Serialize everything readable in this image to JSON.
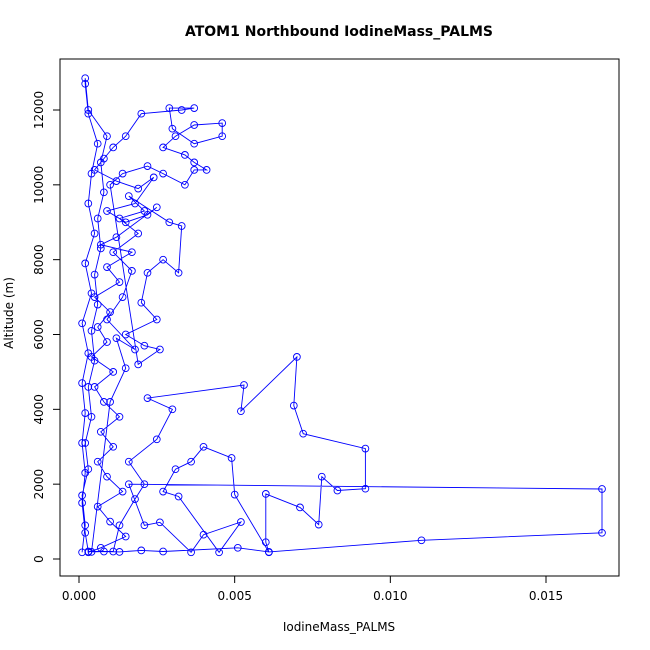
{
  "chart_data": {
    "type": "line",
    "title": "ATOM1 Northbound IodineMass_PALMS",
    "xlabel": "IodineMass_PALMS",
    "ylabel": "Altitude (m)",
    "xlim": [
      0,
      0.0168
    ],
    "ylim": [
      150,
      12850
    ],
    "x_ticks": [
      0.0,
      0.005,
      0.01,
      0.015
    ],
    "x_tick_labels": [
      "0.000",
      "0.005",
      "0.010",
      "0.015"
    ],
    "y_ticks": [
      0,
      2000,
      4000,
      6000,
      8000,
      10000,
      12000
    ],
    "y_tick_labels": [
      "0",
      "2000",
      "4000",
      "6000",
      "8000",
      "10000",
      "12000"
    ],
    "series_color": "#0000ff",
    "series": [
      {
        "name": "",
        "points": [
          [
            0.0001,
            180
          ],
          [
            0.0002,
            900
          ],
          [
            0.0001,
            1700
          ],
          [
            0.0003,
            2400
          ],
          [
            0.0002,
            3100
          ],
          [
            0.0004,
            3800
          ],
          [
            0.0003,
            4600
          ],
          [
            0.0005,
            5300
          ],
          [
            0.0004,
            6100
          ],
          [
            0.0006,
            6800
          ],
          [
            0.0005,
            7600
          ],
          [
            0.0007,
            8300
          ],
          [
            0.0006,
            9100
          ],
          [
            0.0008,
            9800
          ],
          [
            0.0007,
            10600
          ],
          [
            0.0009,
            11300
          ],
          [
            0.0003,
            12000
          ],
          [
            0.0002,
            12850
          ],
          [
            0.0002,
            12700
          ],
          [
            0.0003,
            11900
          ],
          [
            0.0006,
            11100
          ],
          [
            0.0004,
            10300
          ],
          [
            0.0003,
            9500
          ],
          [
            0.0005,
            8700
          ],
          [
            0.0002,
            7900
          ],
          [
            0.0004,
            7100
          ],
          [
            0.0001,
            6300
          ],
          [
            0.0003,
            5500
          ],
          [
            0.0001,
            4700
          ],
          [
            0.0002,
            3900
          ],
          [
            0.0001,
            3100
          ],
          [
            0.0002,
            2300
          ],
          [
            0.0001,
            1500
          ],
          [
            0.0002,
            700
          ],
          [
            0.0003,
            200
          ],
          [
            0.0011,
            200
          ],
          [
            0.0013,
            900
          ],
          [
            0.0018,
            1600
          ],
          [
            0.0021,
            2000
          ],
          [
            0.0016,
            2600
          ],
          [
            0.0025,
            3200
          ],
          [
            0.003,
            4000
          ],
          [
            0.0022,
            4300
          ],
          [
            0.0053,
            4650
          ],
          [
            0.0052,
            3950
          ],
          [
            0.007,
            5400
          ],
          [
            0.0069,
            4100
          ],
          [
            0.0072,
            3350
          ],
          [
            0.0092,
            2950
          ],
          [
            0.0092,
            1880
          ],
          [
            0.0083,
            1830
          ],
          [
            0.0078,
            2200
          ],
          [
            0.0077,
            920
          ],
          [
            0.0071,
            1380
          ],
          [
            0.006,
            1740
          ],
          [
            0.006,
            450
          ],
          [
            0.0061,
            180
          ],
          [
            0.005,
            1720
          ],
          [
            0.0049,
            2700
          ],
          [
            0.004,
            3000
          ],
          [
            0.0036,
            2600
          ],
          [
            0.0031,
            2400
          ],
          [
            0.0027,
            1800
          ],
          [
            0.0032,
            1670
          ],
          [
            0.0045,
            180
          ],
          [
            0.0052,
            990
          ],
          [
            0.004,
            650
          ],
          [
            0.0036,
            180
          ],
          [
            0.0026,
            980
          ],
          [
            0.0021,
            900
          ],
          [
            0.0016,
            2000
          ],
          [
            0.0168,
            1870
          ],
          [
            0.0168,
            700
          ],
          [
            0.011,
            500
          ],
          [
            0.0061,
            190
          ],
          [
            0.0051,
            300
          ],
          [
            0.0027,
            200
          ],
          [
            0.002,
            230
          ],
          [
            0.0013,
            190
          ],
          [
            0.0008,
            200
          ],
          [
            0.0004,
            190
          ],
          [
            0.001,
            4200
          ],
          [
            0.0015,
            5100
          ],
          [
            0.0012,
            5900
          ],
          [
            0.0018,
            5600
          ],
          [
            0.0009,
            6400
          ],
          [
            0.0014,
            7000
          ],
          [
            0.0017,
            7700
          ],
          [
            0.0011,
            8200
          ],
          [
            0.0019,
            8700
          ],
          [
            0.0013,
            9100
          ],
          [
            0.0021,
            9300
          ],
          [
            0.0016,
            9700
          ],
          [
            0.0029,
            9000
          ],
          [
            0.0033,
            8900
          ],
          [
            0.0032,
            7650
          ],
          [
            0.0027,
            8000
          ],
          [
            0.0022,
            7650
          ],
          [
            0.002,
            6850
          ],
          [
            0.0025,
            6400
          ],
          [
            0.0015,
            6000
          ],
          [
            0.0021,
            5700
          ],
          [
            0.0026,
            5600
          ],
          [
            0.0019,
            5200
          ],
          [
            0.001,
            10000
          ],
          [
            0.0014,
            10300
          ],
          [
            0.0022,
            10500
          ],
          [
            0.0027,
            10300
          ],
          [
            0.0034,
            10000
          ],
          [
            0.0037,
            10400
          ],
          [
            0.0041,
            10400
          ],
          [
            0.0037,
            10600
          ],
          [
            0.0034,
            10800
          ],
          [
            0.0027,
            11000
          ],
          [
            0.0031,
            11300
          ],
          [
            0.0037,
            11600
          ],
          [
            0.0046,
            11650
          ],
          [
            0.0046,
            11300
          ],
          [
            0.0037,
            11100
          ],
          [
            0.003,
            11500
          ],
          [
            0.0029,
            12050
          ],
          [
            0.0037,
            12050
          ],
          [
            0.0033,
            12000
          ],
          [
            0.002,
            11900
          ],
          [
            0.0015,
            11300
          ],
          [
            0.0011,
            11000
          ],
          [
            0.0008,
            10700
          ],
          [
            0.0005,
            10400
          ],
          [
            0.0012,
            10100
          ],
          [
            0.0019,
            9900
          ],
          [
            0.0024,
            10200
          ],
          [
            0.0018,
            9500
          ],
          [
            0.0009,
            9300
          ],
          [
            0.0015,
            9000
          ],
          [
            0.0022,
            9200
          ],
          [
            0.0025,
            9400
          ],
          [
            0.0012,
            8600
          ],
          [
            0.0007,
            8400
          ],
          [
            0.0017,
            8200
          ],
          [
            0.0009,
            7800
          ],
          [
            0.0013,
            7400
          ],
          [
            0.0005,
            7000
          ],
          [
            0.001,
            6600
          ],
          [
            0.0006,
            6200
          ],
          [
            0.0009,
            5800
          ],
          [
            0.0004,
            5400
          ],
          [
            0.0011,
            5000
          ],
          [
            0.0005,
            4600
          ],
          [
            0.0008,
            4200
          ],
          [
            0.0013,
            3800
          ],
          [
            0.0007,
            3400
          ],
          [
            0.0011,
            3000
          ],
          [
            0.0006,
            2600
          ],
          [
            0.0009,
            2200
          ],
          [
            0.0014,
            1800
          ],
          [
            0.0006,
            1400
          ],
          [
            0.001,
            1000
          ],
          [
            0.0015,
            600
          ],
          [
            0.0007,
            300
          ],
          [
            0.0003,
            180
          ]
        ]
      }
    ]
  }
}
